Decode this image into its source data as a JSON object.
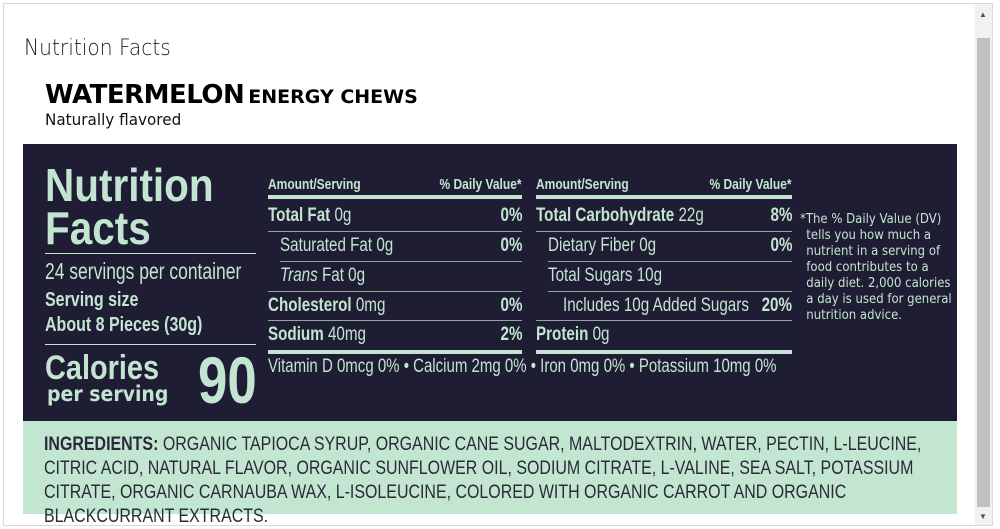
{
  "page_title": "Nutrition Facts",
  "product": {
    "name": "WATERMELON",
    "type": "ENERGY CHEWS",
    "subtitle": "Naturally flavored"
  },
  "label": {
    "heading": "Nutrition Facts",
    "servings": "24 servings per container",
    "serving_size_label": "Serving size",
    "serving_size": "About 8 Pieces (30g)",
    "calories_label": "Calories",
    "per_serving": "per serving",
    "calories": "90",
    "col_amount": "Amount/Serving",
    "col_dv": "% Daily Value*",
    "left_rows": [
      {
        "name": "Total Fat",
        "amount": "0g",
        "dv": "0%"
      },
      {
        "name": "Saturated Fat",
        "amount": "0g",
        "dv": "0%"
      },
      {
        "italic": "Trans",
        "name": "Fat",
        "amount": "0g",
        "dv": ""
      },
      {
        "name": "Cholesterol",
        "amount": "0mg",
        "dv": "0%"
      },
      {
        "name": "Sodium",
        "amount": "40mg",
        "dv": "2%"
      }
    ],
    "right_rows": [
      {
        "name": "Total Carbohydrate",
        "amount": "22g",
        "dv": "8%"
      },
      {
        "name": "Dietary Fiber",
        "amount": "0g",
        "dv": "0%"
      },
      {
        "name": "Total Sugars",
        "amount": "10g",
        "dv": ""
      },
      {
        "name": "Includes 10g Added Sugars",
        "amount": "",
        "dv": "20%"
      },
      {
        "name": "Protein",
        "amount": "0g",
        "dv": ""
      }
    ],
    "vitamins": "Vitamin D 0mcg 0% • Calcium 2mg 0% • Iron 0mg 0% • Potassium 10mg 0%",
    "footnote": [
      "*The % Daily Value (DV)",
      "tells you how much a",
      "nutrient in a serving of",
      "food contributes to a",
      "daily diet. 2,000 calories",
      "a day is used for general",
      "nutrition advice."
    ]
  },
  "ingredients": {
    "label": "INGREDIENTS:",
    "text": "ORGANIC TAPIOCA SYRUP, ORGANIC CANE SUGAR, MALTODEXTRIN, WATER, PECTIN, L-LEUCINE, CITRIC ACID, NATURAL FLAVOR, ORGANIC SUNFLOWER OIL, SODIUM CITRATE, L-VALINE, SEA SALT, POTASSIUM CITRATE, ORGANIC CARNAUBA WAX, L-ISOLEUCINE, COLORED WITH ORGANIC CARROT AND ORGANIC BLACKCURRANT EXTRACTS."
  },
  "colors": {
    "panel": "#1e1d33",
    "mint": "#c3e4d0",
    "ingredients_bg": "#c3e6d0"
  }
}
